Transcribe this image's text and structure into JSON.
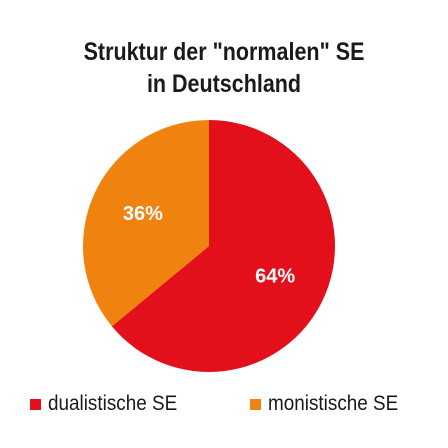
{
  "chart_data": {
    "type": "pie",
    "title": [
      "Struktur der \"normalen\" SE",
      "in Deutschland"
    ],
    "slices": [
      {
        "name": "dualistische SE",
        "value": 64,
        "label": "64%",
        "color": "#e3101c"
      },
      {
        "name": "monistische SE",
        "value": 36,
        "label": "36%",
        "color": "#f0820f"
      }
    ],
    "legend_position": "bottom"
  }
}
